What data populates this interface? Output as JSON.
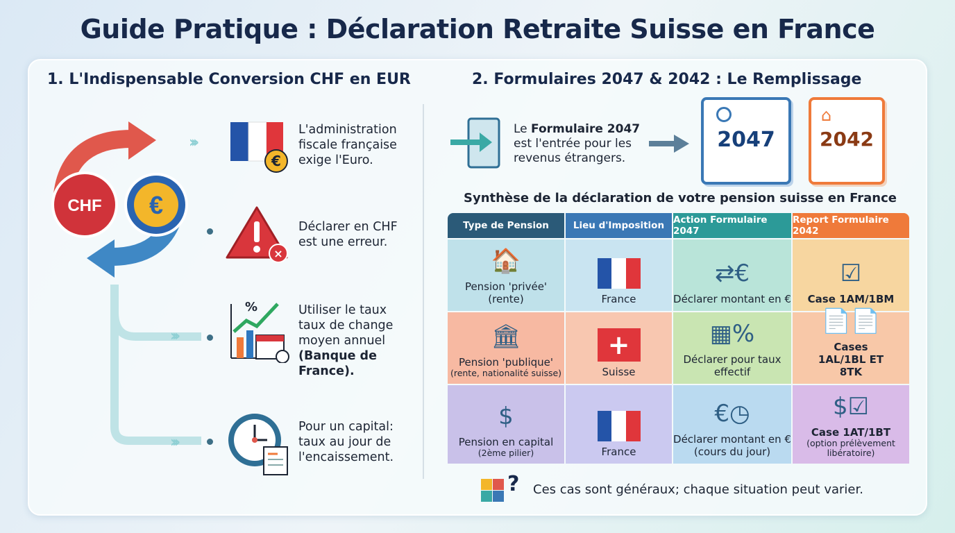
{
  "title": "Guide Pratique : Déclaration Retraite Suisse en France",
  "left": {
    "heading": "1. L'Indispensable Conversion CHF en EUR",
    "cycle_labels": {
      "chf": "CHF",
      "eur": "€"
    },
    "items": [
      {
        "icon": "france-flag-euro-icon",
        "text": "L'administration fiscale française exige l'Euro."
      },
      {
        "icon": "warning-icon",
        "text": "Déclarer en CHF est une erreur."
      },
      {
        "icon": "chart-calendar-icon",
        "text": "Utiliser le taux taux de change moyen annuel",
        "bold": "(Banque de France)."
      },
      {
        "icon": "clock-document-icon",
        "text": "Pour un capital: taux au jour de l'encaissement."
      }
    ]
  },
  "right": {
    "heading": "2. Formulaires 2047 & 2042 : Le Remplissage",
    "intro": {
      "pre": "Le ",
      "bold": "Formulaire 2047",
      "post": " est l'entrée pour les revenus étrangers."
    },
    "form_a": "2047",
    "form_b": "2042",
    "synthesis_title": "Synthèse de la déclaration de votre pension suisse en France",
    "table": {
      "headers": [
        "Type de Pension",
        "Lieu d'Imposition",
        "Action Formulaire 2047",
        "Report Formulaire 2042"
      ],
      "header_colors": [
        "#2b5a78",
        "#3a78b5",
        "#2c9a98",
        "#ef7a3a"
      ],
      "rows": [
        {
          "type": "Pension 'privée'",
          "type_sub": "(rente)",
          "lieu": "France",
          "action": "Déclarer montant en €",
          "report": "Case 1AM/1BM",
          "report_sub": "",
          "colors": [
            "#bfe1ea",
            "#c9e4f1",
            "#b9e4d9",
            "#f7d6a0"
          ]
        },
        {
          "type": "Pension 'publique'",
          "type_sub": "(rente, nationalité suisse)",
          "lieu": "Suisse",
          "action": "Déclarer pour taux effectif",
          "report": "Cases 1AL/1BL ET 8TK",
          "report_sub": "",
          "colors": [
            "#f7b9a2",
            "#f8c7b0",
            "#c9e5b2",
            "#f8c8a8"
          ]
        },
        {
          "type": "Pension en capital",
          "type_sub": "(2ème pilier)",
          "lieu": "France",
          "action": "Déclarer montant en € (cours du jour)",
          "report": "Case 1AT/1BT",
          "report_sub": "(option prélèvement libératoire)",
          "colors": [
            "#c9c1e9",
            "#cbc9f0",
            "#badaf0",
            "#d9bbe8"
          ]
        }
      ]
    },
    "note": "Ces cas sont généraux; chaque situation peut varier."
  }
}
